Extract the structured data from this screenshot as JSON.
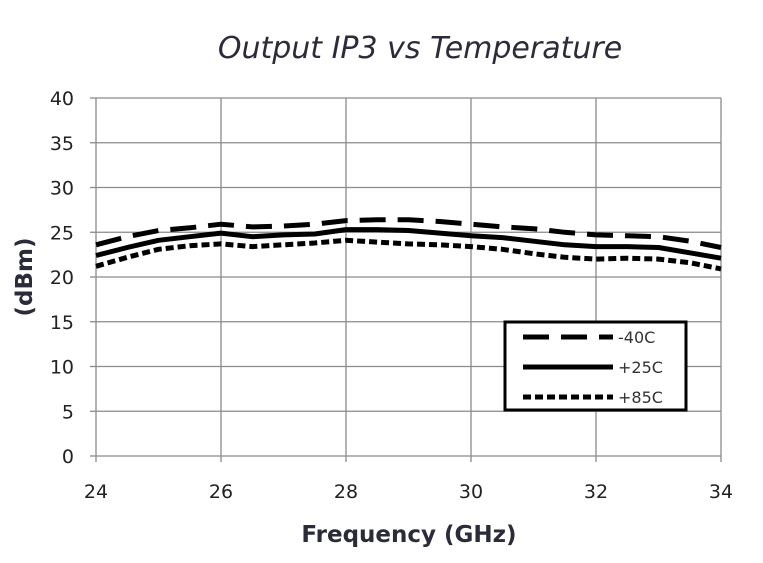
{
  "chart_data": {
    "type": "line",
    "title": "Output IP3 vs Temperature",
    "xlabel": "Frequency (GHz)",
    "ylabel": "(dBm)",
    "xlim": [
      24,
      34
    ],
    "ylim": [
      0,
      40
    ],
    "xticks": [
      24,
      26,
      28,
      30,
      32,
      34
    ],
    "yticks": [
      0,
      5,
      10,
      15,
      20,
      25,
      30,
      35,
      40
    ],
    "grid": true,
    "legend_position": "lower-right",
    "series": [
      {
        "name": "-40C",
        "style": "long-dash",
        "color": "#000000",
        "x": [
          24,
          24.5,
          25,
          25.5,
          26,
          26.5,
          27,
          27.5,
          28,
          28.5,
          29,
          29.5,
          30,
          30.5,
          31,
          31.5,
          32,
          32.5,
          33,
          33.5,
          34
        ],
        "y": [
          23.6,
          24.5,
          25.2,
          25.5,
          25.9,
          25.6,
          25.7,
          25.9,
          26.3,
          26.4,
          26.4,
          26.2,
          25.9,
          25.6,
          25.4,
          25.0,
          24.7,
          24.6,
          24.5,
          24.0,
          23.3
        ]
      },
      {
        "name": "+25C",
        "style": "solid",
        "color": "#000000",
        "x": [
          24,
          24.5,
          25,
          25.5,
          26,
          26.5,
          27,
          27.5,
          28,
          28.5,
          29,
          29.5,
          30,
          30.5,
          31,
          31.5,
          32,
          32.5,
          33,
          33.5,
          34
        ],
        "y": [
          22.4,
          23.3,
          24.1,
          24.5,
          24.9,
          24.5,
          24.7,
          24.8,
          25.3,
          25.3,
          25.2,
          24.9,
          24.6,
          24.4,
          24.0,
          23.6,
          23.4,
          23.4,
          23.3,
          22.7,
          22.1
        ]
      },
      {
        "name": "+85C",
        "style": "short-dash",
        "color": "#000000",
        "x": [
          24,
          24.5,
          25,
          25.5,
          26,
          26.5,
          27,
          27.5,
          28,
          28.5,
          29,
          29.5,
          30,
          30.5,
          31,
          31.5,
          32,
          32.5,
          33,
          33.5,
          34
        ],
        "y": [
          21.2,
          22.2,
          23.1,
          23.5,
          23.7,
          23.4,
          23.6,
          23.8,
          24.1,
          23.9,
          23.7,
          23.6,
          23.4,
          23.1,
          22.6,
          22.2,
          22.0,
          22.1,
          22.0,
          21.6,
          20.9
        ]
      }
    ]
  }
}
